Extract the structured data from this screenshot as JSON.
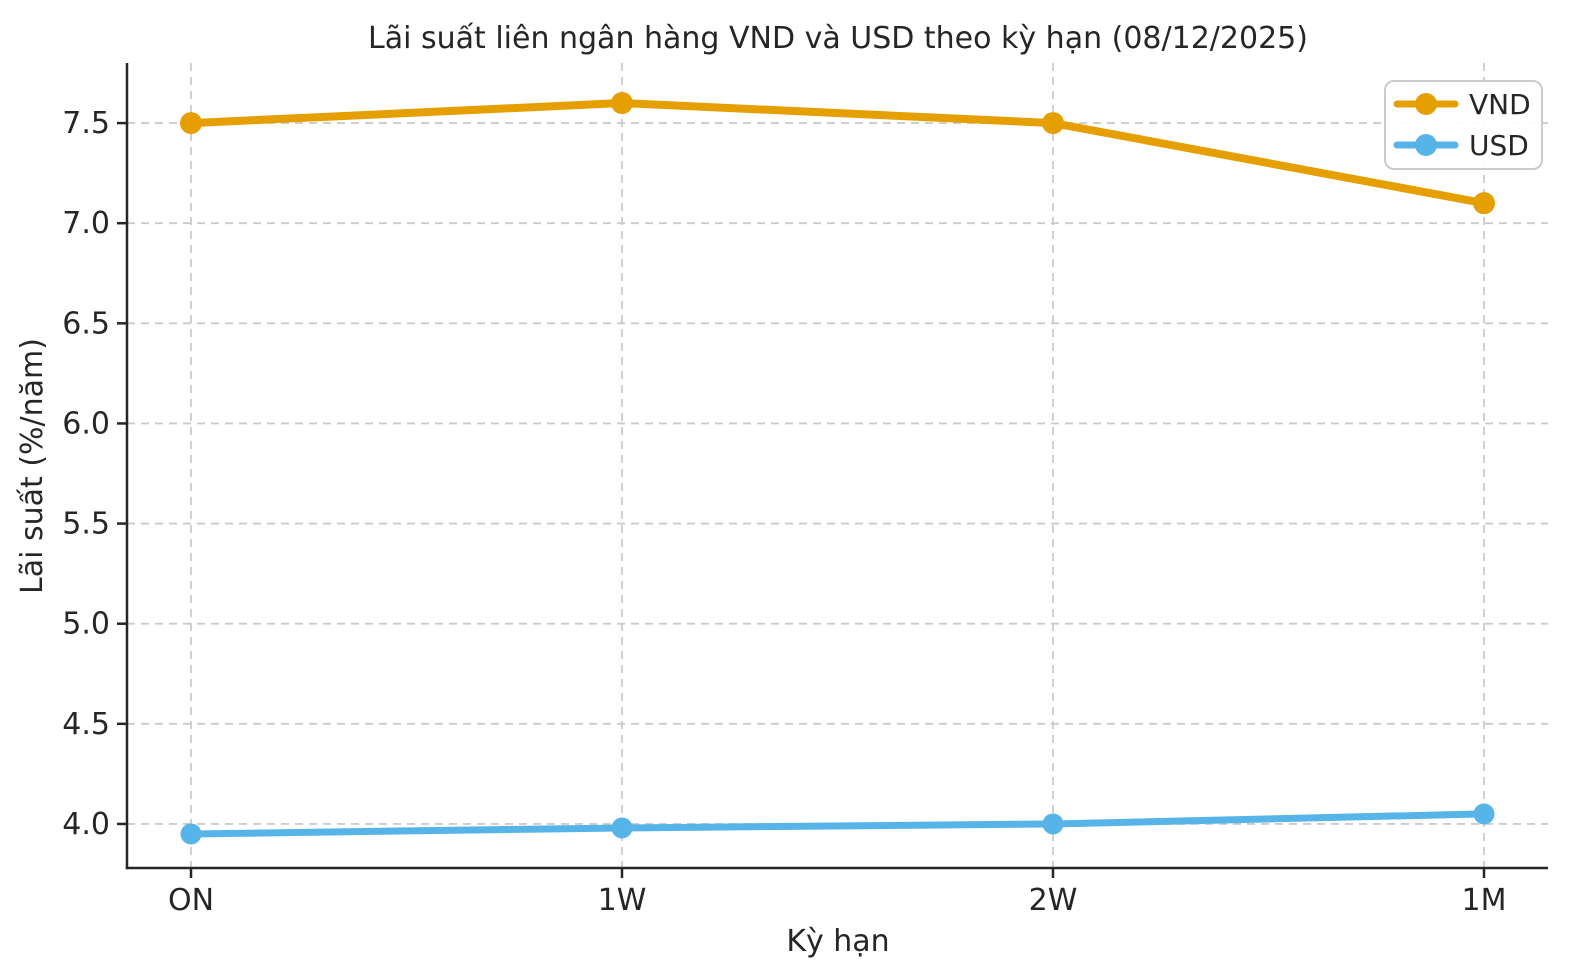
{
  "chart_data": {
    "type": "line",
    "title": "Lãi suất liên ngân hàng VND và USD theo kỳ hạn (08/12/2025)",
    "xlabel": "Kỳ hạn",
    "ylabel": "Lãi suất (%/năm)",
    "categories": [
      "ON",
      "1W",
      "2W",
      "1M"
    ],
    "series": [
      {
        "name": "VND",
        "values": [
          7.5,
          7.6,
          7.5,
          7.1
        ],
        "color": "#E69F00"
      },
      {
        "name": "USD",
        "values": [
          3.95,
          3.98,
          4.0,
          4.05
        ],
        "color": "#56B4E9"
      }
    ],
    "ylim": [
      3.78,
      7.8
    ],
    "yticks": [
      4.0,
      4.5,
      5.0,
      5.5,
      6.0,
      6.5,
      7.0,
      7.5
    ],
    "ytick_labels": [
      "4.0",
      "4.5",
      "5.0",
      "5.5",
      "6.0",
      "6.5",
      "7.0",
      "7.5"
    ],
    "grid": true,
    "legend_position": "upper right",
    "legend_entries": [
      "VND",
      "USD"
    ]
  },
  "colors": {
    "vnd_line": "#E69F00",
    "usd_line": "#56B4E9",
    "grid_line": "#CBCBCB",
    "axis_spine": "#262626",
    "text": "#262626",
    "legend_border": "#CCCCCC",
    "background": "#FFFFFF"
  }
}
